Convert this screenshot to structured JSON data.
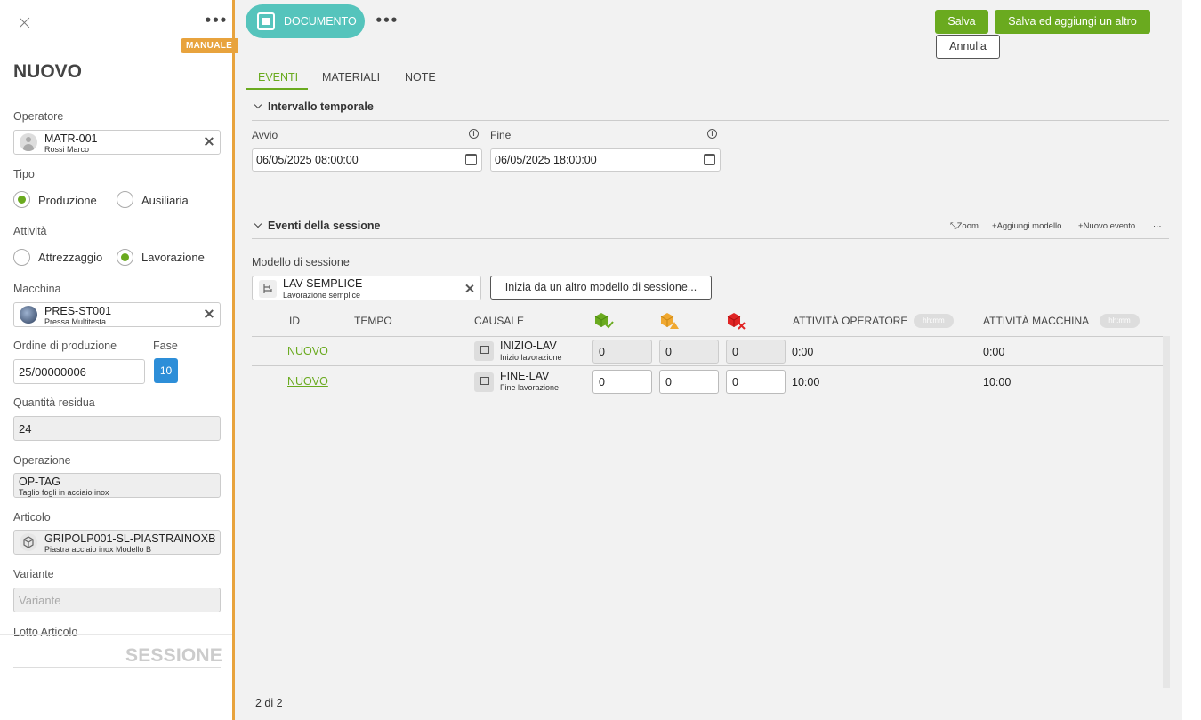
{
  "left_panel": {
    "badge": "MANUALE",
    "title": "NUOVO",
    "operatore": {
      "label": "Operatore",
      "code": "MATR-001",
      "desc": "Rossi Marco"
    },
    "tipo": {
      "label": "Tipo",
      "options": [
        "Produzione",
        "Ausiliaria"
      ],
      "selected": "Produzione"
    },
    "attivita": {
      "label": "Attività",
      "options": [
        "Attrezzaggio",
        "Lavorazione"
      ],
      "selected": "Lavorazione"
    },
    "macchina": {
      "label": "Macchina",
      "code": "PRES-ST001",
      "desc": "Pressa Multitesta"
    },
    "ordine": {
      "label": "Ordine di produzione",
      "value": "25/00000006"
    },
    "fase": {
      "label": "Fase",
      "value": "10"
    },
    "quantita": {
      "label": "Quantità residua",
      "value": "24"
    },
    "operazione": {
      "label": "Operazione",
      "code": "OP-TAG",
      "desc": "Taglio fogli in acciaio inox"
    },
    "articolo": {
      "label": "Articolo",
      "code": "GRIPOLP001-SL-PIASTRAINOXB",
      "desc": "Piastra acciaio inox Modello B"
    },
    "variante": {
      "label": "Variante",
      "placeholder": "Variante"
    },
    "lotto": {
      "label": "Lotto Articolo"
    },
    "footer": "SESSIONE"
  },
  "header": {
    "document_button": "DOCUMENTO",
    "save": "Salva",
    "save_add": "Salva ed aggiungi un altro",
    "cancel": "Annulla"
  },
  "tabs": [
    "EVENTI",
    "MATERIALI",
    "NOTE"
  ],
  "intervallo": {
    "title": "Intervallo temporale",
    "start_label": "Avvio",
    "start_value": "06/05/2025 08:00:00",
    "end_label": "Fine",
    "end_value": "06/05/2025 18:00:00"
  },
  "eventi": {
    "title": "Eventi della sessione",
    "actions": {
      "zoom": "Zoom",
      "add_model": "Aggiungi modello",
      "new_event": "Nuovo evento"
    },
    "model_label": "Modello di sessione",
    "model_code": "LAV-SEMPLICE",
    "model_desc": "Lavorazione semplice",
    "alt_model_button": "Inizia da un altro modello di sessione...",
    "columns": {
      "id": "ID",
      "tempo": "TEMPO",
      "causale": "CAUSALE",
      "att_op": "ATTIVITÀ OPERATORE",
      "att_mac": "ATTIVITÀ MACCHINA",
      "hhmm": "hh:mm"
    },
    "rows": [
      {
        "id": "NUOVO",
        "causale_code": "INIZIO-LAV",
        "causale_desc": "Inizio lavorazione",
        "good": "0",
        "warn": "0",
        "scrap": "0",
        "att_op": "0:00",
        "att_mac": "0:00"
      },
      {
        "id": "NUOVO",
        "causale_code": "FINE-LAV",
        "causale_desc": "Fine lavorazione",
        "good": "0",
        "warn": "0",
        "scrap": "0",
        "att_op": "10:00",
        "att_mac": "10:00"
      }
    ]
  },
  "pagination": "2 di 2",
  "colors": {
    "accent": "#6aaa1f",
    "manual": "#e8a33d",
    "document": "#55c4bc",
    "fase": "#2d8ed8"
  }
}
